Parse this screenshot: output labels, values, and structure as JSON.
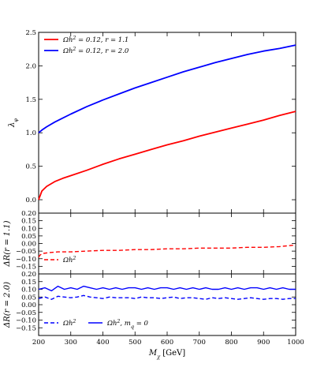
{
  "chart_data": [
    {
      "type": "line",
      "x": [
        200,
        210,
        225,
        250,
        275,
        300,
        350,
        400,
        450,
        500,
        550,
        600,
        650,
        700,
        750,
        800,
        850,
        900,
        950,
        1000
      ],
      "series": [
        {
          "name": "Ωh² = 0.12, r = 1.1",
          "color": "#ff0000",
          "values": [
            0.0,
            0.13,
            0.2,
            0.27,
            0.32,
            0.36,
            0.44,
            0.53,
            0.61,
            0.68,
            0.75,
            0.82,
            0.88,
            0.95,
            1.01,
            1.07,
            1.13,
            1.19,
            1.26,
            1.32
          ]
        },
        {
          "name": "Ωh² = 0.12, r = 2.0",
          "color": "#0000ff",
          "values": [
            1.0,
            1.04,
            1.09,
            1.16,
            1.22,
            1.28,
            1.39,
            1.49,
            1.58,
            1.67,
            1.75,
            1.83,
            1.91,
            1.98,
            2.05,
            2.11,
            2.17,
            2.22,
            2.26,
            2.31
          ]
        }
      ],
      "ylabel": "λ_φ",
      "xlim": [
        200,
        1000
      ],
      "ylim": [
        -0.2,
        2.5
      ],
      "yticks": [
        "0.0",
        "0.5",
        "1.0",
        "1.5",
        "2.0",
        "2.5"
      ],
      "grid": false,
      "legend": "top-left"
    },
    {
      "type": "line",
      "x": [
        200,
        205,
        215,
        230,
        260,
        300,
        350,
        400,
        450,
        500,
        550,
        600,
        650,
        700,
        750,
        800,
        850,
        900,
        950,
        1000
      ],
      "series": [
        {
          "name": "Ωh²",
          "color": "#ff0000",
          "dash": "dashed",
          "values": [
            -0.09,
            -0.075,
            -0.065,
            -0.06,
            -0.055,
            -0.055,
            -0.05,
            -0.045,
            -0.045,
            -0.04,
            -0.04,
            -0.035,
            -0.035,
            -0.03,
            -0.03,
            -0.03,
            -0.025,
            -0.025,
            -0.02,
            -0.01
          ]
        }
      ],
      "ylabel": "ΔR(r = 1.1)",
      "xlim": [
        200,
        1000
      ],
      "ylim": [
        -0.2,
        0.2
      ],
      "yticks": [
        "−0.15",
        "−0.10",
        "−0.05",
        "0.00",
        "0.05",
        "0.10",
        "0.15",
        "0.20"
      ],
      "legend": "bottom-left"
    },
    {
      "type": "line",
      "x": [
        200,
        220,
        240,
        260,
        280,
        300,
        320,
        340,
        360,
        380,
        400,
        420,
        440,
        460,
        480,
        500,
        520,
        540,
        560,
        580,
        600,
        620,
        640,
        660,
        680,
        700,
        720,
        740,
        760,
        780,
        800,
        820,
        840,
        860,
        880,
        900,
        920,
        940,
        960,
        980,
        1000
      ],
      "series": [
        {
          "name": "Ωh²",
          "color": "#0000ff",
          "dash": "dashed",
          "values": [
            0.04,
            0.05,
            0.035,
            0.055,
            0.05,
            0.045,
            0.05,
            0.06,
            0.05,
            0.045,
            0.04,
            0.05,
            0.045,
            0.045,
            0.045,
            0.04,
            0.05,
            0.045,
            0.045,
            0.04,
            0.045,
            0.05,
            0.04,
            0.045,
            0.045,
            0.04,
            0.035,
            0.045,
            0.04,
            0.045,
            0.04,
            0.035,
            0.04,
            0.045,
            0.04,
            0.035,
            0.04,
            0.04,
            0.035,
            0.04,
            0.04
          ]
        },
        {
          "name": "Ωh², m_q = 0",
          "color": "#0000ff",
          "dash": "solid",
          "values": [
            0.1,
            0.11,
            0.09,
            0.12,
            0.1,
            0.11,
            0.1,
            0.12,
            0.11,
            0.1,
            0.11,
            0.1,
            0.11,
            0.1,
            0.11,
            0.11,
            0.1,
            0.11,
            0.1,
            0.11,
            0.11,
            0.1,
            0.11,
            0.1,
            0.11,
            0.1,
            0.11,
            0.1,
            0.1,
            0.11,
            0.1,
            0.11,
            0.1,
            0.11,
            0.11,
            0.1,
            0.11,
            0.1,
            0.11,
            0.1,
            0.1
          ]
        }
      ],
      "ylabel": "ΔR(r = 2.0)",
      "xlabel": "M_χ [GeV]",
      "xlim": [
        200,
        1000
      ],
      "ylim": [
        -0.2,
        0.2
      ],
      "xticks": [
        "200",
        "300",
        "400",
        "500",
        "600",
        "700",
        "800",
        "900",
        "1000"
      ],
      "yticks": [
        "−0.15",
        "−0.10",
        "−0.05",
        "0.00",
        "0.05",
        "0.10",
        "0.15",
        "0.20"
      ],
      "legend": "bottom-left"
    }
  ]
}
